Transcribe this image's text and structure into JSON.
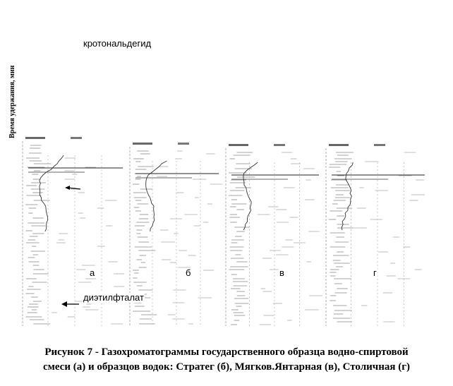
{
  "figure": {
    "y_axis_label": "Время удержания, мин",
    "panel_labels": [
      "а",
      "б",
      "в",
      "г"
    ],
    "annotations": {
      "crotonaldehyde": "кротональдегид",
      "diethyl_phthalate": "диэтилфталат"
    },
    "caption_line_1": "Рисунок 7 - Газохроматограммы государственного образца водно-спиртовой",
    "caption_line_2": "смеси (а) и образцов водок: Стратег (б), Мягков.Янтарная (в), Столичная (г)"
  }
}
